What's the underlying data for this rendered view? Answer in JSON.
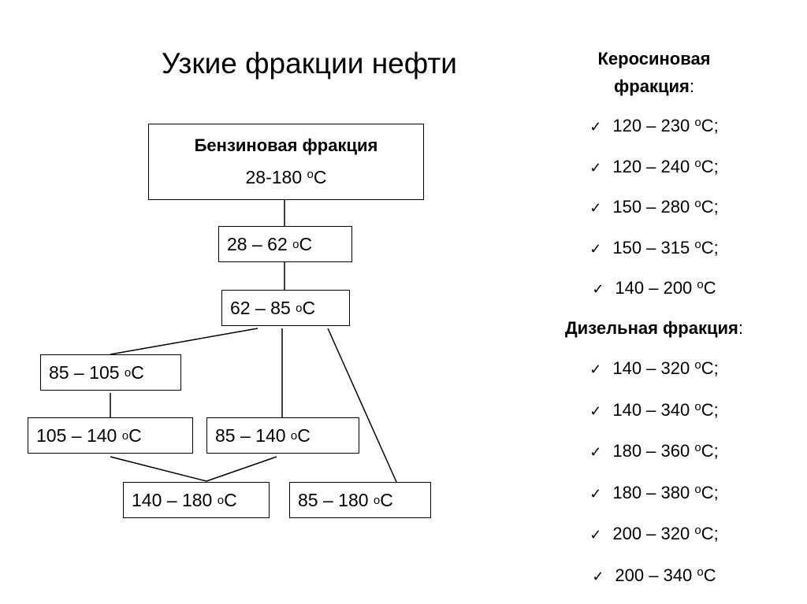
{
  "title": "Узкие фракции нефти",
  "unit": "C",
  "degree": "o",
  "gasoline": {
    "heading": "Бензиновая фракция",
    "range": "28-180",
    "nodes": [
      "28 – 62",
      "62 – 85",
      "85 – 105",
      "105 – 140",
      "85 – 140",
      "140 – 180",
      "85 – 180"
    ]
  },
  "kerosene": {
    "heading_line1": "Керосиновая",
    "heading_line2": "фракция",
    "colon": ":",
    "items": [
      "120 – 230",
      "120 – 240",
      "150 – 280",
      "150 – 315",
      "140 – 200"
    ],
    "suffixes": [
      ";",
      ";",
      ";",
      ";",
      ""
    ]
  },
  "diesel": {
    "heading": "Дизельная фракция",
    "colon": ":",
    "items": [
      "140 – 320",
      "140 – 340",
      "180 – 360",
      "180 – 380",
      "200 – 320",
      "200 – 340"
    ],
    "suffixes": [
      ";",
      ";",
      ";",
      ";",
      ";",
      ""
    ]
  },
  "check_icon": "✓"
}
